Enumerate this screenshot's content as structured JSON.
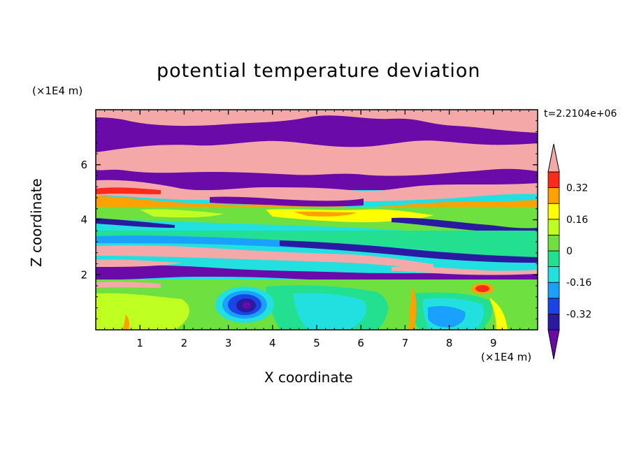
{
  "chart_data": {
    "type": "heatmap",
    "title": "potential temperature deviation",
    "xlabel": "X coordinate",
    "ylabel": "Z coordinate",
    "x_unit": "(×1E4 m)",
    "y_unit": "(×1E4 m)",
    "time_label": "t=2.2104e+06",
    "xlim": [
      0,
      10
    ],
    "ylim": [
      0,
      8
    ],
    "x_ticks": [
      1,
      2,
      3,
      4,
      5,
      6,
      7,
      8,
      9
    ],
    "y_ticks": [
      2,
      4,
      6
    ],
    "colorbar": {
      "levels": [
        -0.4,
        -0.32,
        -0.24,
        -0.16,
        -0.08,
        0,
        0.08,
        0.16,
        0.24,
        0.32,
        0.4
      ],
      "labels": [
        "-0.32",
        "-0.16",
        "0",
        "0.16",
        "0.32"
      ],
      "label_values": [
        -0.32,
        -0.16,
        0,
        0.16,
        0.32
      ],
      "colors": [
        "#6a0aa8",
        "#2a1aa0",
        "#1a44e6",
        "#1aa0ff",
        "#22e0e0",
        "#22e090",
        "#6ee040",
        "#c0ff22",
        "#ffff00",
        "#ffa200",
        "#ff2a1a",
        "#f4a8a8"
      ],
      "extend": "both"
    }
  }
}
